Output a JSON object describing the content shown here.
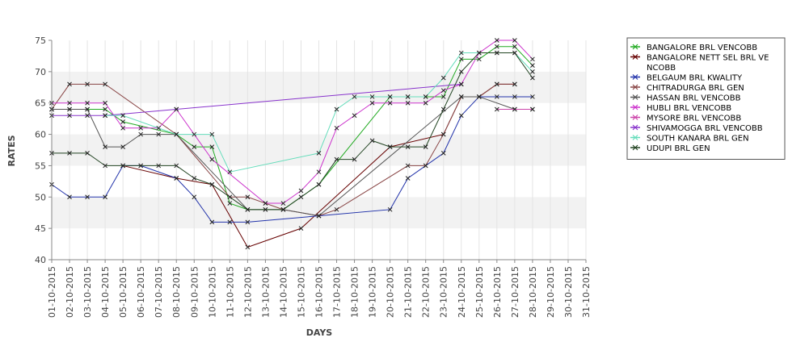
{
  "chart_data": {
    "type": "line",
    "title": "",
    "xlabel": "DAYS",
    "ylabel": "RATES",
    "ylim": [
      40,
      75
    ],
    "yticks": [
      40,
      45,
      50,
      55,
      60,
      65,
      70,
      75
    ],
    "grid": "alternating horizontal bands",
    "legend_position": "right",
    "categories": [
      "01-10-2015",
      "02-10-2015",
      "03-10-2015",
      "04-10-2015",
      "05-10-2015",
      "06-10-2015",
      "07-10-2015",
      "08-10-2015",
      "09-10-2015",
      "10-10-2015",
      "11-10-2015",
      "12-10-2015",
      "13-10-2015",
      "14-10-2015",
      "15-10-2015",
      "16-10-2015",
      "17-10-2015",
      "18-10-2015",
      "19-10-2015",
      "20-10-2015",
      "21-10-2015",
      "22-10-2015",
      "23-10-2015",
      "24-10-2015",
      "25-10-2015",
      "26-10-2015",
      "27-10-2015",
      "28-10-2015",
      "29-10-2015",
      "30-10-2015",
      "31-10-2015"
    ],
    "series": [
      {
        "name": "BANGALORE BRL VENCOBB",
        "color": "#22aa22",
        "values": [
          64,
          64,
          64,
          64,
          62,
          null,
          null,
          60,
          58,
          58,
          49,
          48,
          null,
          48,
          null,
          52,
          null,
          null,
          null,
          66,
          66,
          66,
          66,
          72,
          72,
          74,
          74,
          71,
          null,
          null,
          null
        ]
      },
      {
        "name": "BANGALORE NETT SEL BRL VENCOBB",
        "legend_lines": [
          "BANGALORE NETT SEL BRL VE",
          "NCOBB"
        ],
        "color": "#660000",
        "values": [
          null,
          null,
          null,
          null,
          55,
          null,
          null,
          53,
          null,
          52,
          null,
          42,
          null,
          null,
          45,
          null,
          null,
          null,
          null,
          58,
          null,
          null,
          60,
          66,
          66,
          68,
          68,
          null,
          null,
          null,
          null
        ]
      },
      {
        "name": "BELGAUM BRL KWALITY",
        "color": "#2233aa",
        "values": [
          52,
          50,
          50,
          50,
          55,
          55,
          null,
          53,
          50,
          46,
          46,
          46,
          null,
          null,
          null,
          47,
          null,
          null,
          null,
          48,
          53,
          55,
          57,
          63,
          66,
          66,
          66,
          66,
          null,
          null,
          null
        ]
      },
      {
        "name": "CHITRADURGA BRL GEN",
        "color": "#884444",
        "values": [
          64,
          68,
          68,
          68,
          null,
          null,
          null,
          60,
          null,
          null,
          50,
          50,
          49,
          48,
          null,
          47,
          48,
          null,
          null,
          null,
          55,
          55,
          60,
          66,
          66,
          68,
          68,
          null,
          null,
          null,
          null
        ]
      },
      {
        "name": "HASSAN BRL VENCOBB",
        "color": "#555555",
        "values": [
          64,
          64,
          64,
          58,
          58,
          60,
          60,
          60,
          null,
          null,
          null,
          48,
          48,
          48,
          null,
          47,
          null,
          null,
          null,
          null,
          null,
          null,
          null,
          66,
          66,
          null,
          64,
          64,
          null,
          null,
          null
        ]
      },
      {
        "name": "HUBLI BRL VENCOBB",
        "color": "#cc33cc",
        "values": [
          65,
          65,
          65,
          65,
          61,
          61,
          61,
          64,
          null,
          56,
          null,
          null,
          49,
          49,
          51,
          54,
          61,
          63,
          65,
          65,
          65,
          65,
          67,
          68,
          73,
          75,
          75,
          72,
          null,
          null,
          null
        ]
      },
      {
        "name": "MYSORE BRL VENCOBB",
        "color": "#cc44aa",
        "values": [
          null,
          null,
          null,
          null,
          null,
          null,
          null,
          null,
          null,
          null,
          null,
          null,
          null,
          null,
          null,
          null,
          null,
          null,
          null,
          null,
          null,
          null,
          null,
          null,
          null,
          64,
          64,
          64,
          null,
          null,
          null
        ]
      },
      {
        "name": "SHIVAMOGGA BRL VENCOBB",
        "color": "#8833cc",
        "values": [
          63,
          63,
          63,
          63,
          null,
          null,
          null,
          64,
          null,
          null,
          null,
          null,
          null,
          null,
          null,
          null,
          null,
          null,
          null,
          null,
          null,
          null,
          null,
          68,
          null,
          null,
          null,
          null,
          null,
          null,
          null
        ]
      },
      {
        "name": "SOUTH KANARA BRL GEN",
        "color": "#66ddbb",
        "values": [
          null,
          null,
          null,
          63,
          63,
          null,
          null,
          60,
          60,
          60,
          54,
          null,
          null,
          null,
          null,
          57,
          64,
          66,
          66,
          66,
          66,
          66,
          69,
          73,
          73,
          73,
          73,
          70,
          null,
          null,
          null
        ]
      },
      {
        "name": "UDUPI BRL GEN",
        "color": "#224422",
        "values": [
          57,
          57,
          57,
          55,
          55,
          55,
          55,
          55,
          53,
          52,
          null,
          48,
          48,
          48,
          50,
          52,
          56,
          56,
          59,
          58,
          58,
          58,
          64,
          70,
          73,
          73,
          73,
          69,
          null,
          null,
          null
        ]
      }
    ]
  }
}
